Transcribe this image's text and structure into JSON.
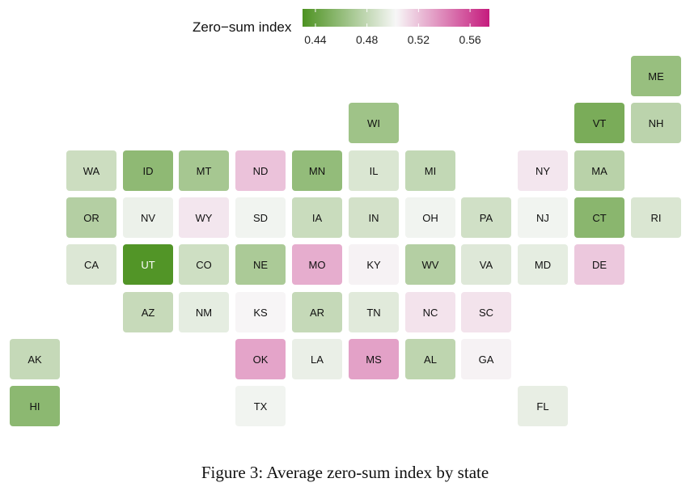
{
  "chart_data": {
    "type": "heatmap",
    "legend": {
      "title": "Zero−sum index",
      "ticks": [
        0.44,
        0.48,
        0.52,
        0.56
      ],
      "tick_labels": [
        "0.44",
        "0.48",
        "0.52",
        "0.56"
      ],
      "range": [
        0.43,
        0.575
      ],
      "color_low": "#4d9221",
      "color_mid": "#f7f7f7",
      "color_high": "#c51b7d",
      "placement": "top"
    },
    "states": [
      {
        "abbr": "ME",
        "row": 0,
        "col": 11,
        "value": 0.462
      },
      {
        "abbr": "WI",
        "row": 1,
        "col": 6,
        "value": 0.465
      },
      {
        "abbr": "VT",
        "row": 1,
        "col": 10,
        "value": 0.449
      },
      {
        "abbr": "NH",
        "row": 1,
        "col": 11,
        "value": 0.477
      },
      {
        "abbr": "WA",
        "row": 2,
        "col": 1,
        "value": 0.484
      },
      {
        "abbr": "ID",
        "row": 2,
        "col": 2,
        "value": 0.458
      },
      {
        "abbr": "MT",
        "row": 2,
        "col": 3,
        "value": 0.468
      },
      {
        "abbr": "ND",
        "row": 2,
        "col": 4,
        "value": 0.52
      },
      {
        "abbr": "MN",
        "row": 2,
        "col": 5,
        "value": 0.46
      },
      {
        "abbr": "IL",
        "row": 2,
        "col": 6,
        "value": 0.49
      },
      {
        "abbr": "MI",
        "row": 2,
        "col": 7,
        "value": 0.48
      },
      {
        "abbr": "NY",
        "row": 2,
        "col": 9,
        "value": 0.508
      },
      {
        "abbr": "MA",
        "row": 2,
        "col": 10,
        "value": 0.476
      },
      {
        "abbr": "OR",
        "row": 3,
        "col": 1,
        "value": 0.474
      },
      {
        "abbr": "NV",
        "row": 3,
        "col": 2,
        "value": 0.498
      },
      {
        "abbr": "WY",
        "row": 3,
        "col": 3,
        "value": 0.508
      },
      {
        "abbr": "SD",
        "row": 3,
        "col": 4,
        "value": 0.5
      },
      {
        "abbr": "IA",
        "row": 3,
        "col": 5,
        "value": 0.483
      },
      {
        "abbr": "IN",
        "row": 3,
        "col": 6,
        "value": 0.487
      },
      {
        "abbr": "OH",
        "row": 3,
        "col": 7,
        "value": 0.5
      },
      {
        "abbr": "PA",
        "row": 3,
        "col": 8,
        "value": 0.486
      },
      {
        "abbr": "NJ",
        "row": 3,
        "col": 9,
        "value": 0.5
      },
      {
        "abbr": "CT",
        "row": 3,
        "col": 10,
        "value": 0.456
      },
      {
        "abbr": "RI",
        "row": 3,
        "col": 11,
        "value": 0.49
      },
      {
        "abbr": "CA",
        "row": 4,
        "col": 1,
        "value": 0.491
      },
      {
        "abbr": "UT",
        "row": 4,
        "col": 2,
        "value": 0.432
      },
      {
        "abbr": "CO",
        "row": 4,
        "col": 3,
        "value": 0.485
      },
      {
        "abbr": "NE",
        "row": 4,
        "col": 4,
        "value": 0.47
      },
      {
        "abbr": "MO",
        "row": 4,
        "col": 5,
        "value": 0.527
      },
      {
        "abbr": "KY",
        "row": 4,
        "col": 6,
        "value": 0.504
      },
      {
        "abbr": "WV",
        "row": 4,
        "col": 7,
        "value": 0.474
      },
      {
        "abbr": "VA",
        "row": 4,
        "col": 8,
        "value": 0.492
      },
      {
        "abbr": "MD",
        "row": 4,
        "col": 9,
        "value": 0.495
      },
      {
        "abbr": "DE",
        "row": 4,
        "col": 10,
        "value": 0.518
      },
      {
        "abbr": "AZ",
        "row": 5,
        "col": 2,
        "value": 0.482
      },
      {
        "abbr": "NM",
        "row": 5,
        "col": 3,
        "value": 0.495
      },
      {
        "abbr": "KS",
        "row": 5,
        "col": 4,
        "value": 0.503
      },
      {
        "abbr": "AR",
        "row": 5,
        "col": 5,
        "value": 0.481
      },
      {
        "abbr": "TN",
        "row": 5,
        "col": 6,
        "value": 0.493
      },
      {
        "abbr": "NC",
        "row": 5,
        "col": 7,
        "value": 0.509
      },
      {
        "abbr": "SC",
        "row": 5,
        "col": 8,
        "value": 0.509
      },
      {
        "abbr": "AK",
        "row": 6,
        "col": 0,
        "value": 0.481
      },
      {
        "abbr": "OK",
        "row": 6,
        "col": 4,
        "value": 0.53
      },
      {
        "abbr": "LA",
        "row": 6,
        "col": 5,
        "value": 0.497
      },
      {
        "abbr": "MS",
        "row": 6,
        "col": 6,
        "value": 0.531
      },
      {
        "abbr": "AL",
        "row": 6,
        "col": 7,
        "value": 0.478
      },
      {
        "abbr": "GA",
        "row": 6,
        "col": 8,
        "value": 0.504
      },
      {
        "abbr": "HI",
        "row": 7,
        "col": 0,
        "value": 0.457
      },
      {
        "abbr": "TX",
        "row": 7,
        "col": 4,
        "value": 0.5
      },
      {
        "abbr": "FL",
        "row": 7,
        "col": 9,
        "value": 0.496
      }
    ]
  },
  "caption": "Figure 3: Average zero-sum index by state"
}
